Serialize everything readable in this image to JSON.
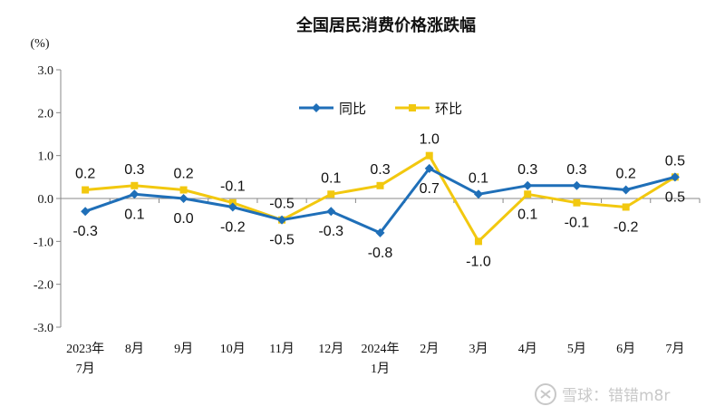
{
  "chart_data": {
    "type": "line",
    "title": "全国居民消费价格涨跌幅",
    "unit": "(%)",
    "ylim": [
      -3.0,
      3.0
    ],
    "yticks": [
      "3.0",
      "2.0",
      "1.0",
      "0.0",
      "-1.0",
      "-2.0",
      "-3.0"
    ],
    "categories": [
      [
        "2023年",
        "7月"
      ],
      [
        "8月"
      ],
      [
        "9月"
      ],
      [
        "10月"
      ],
      [
        "11月"
      ],
      [
        "12月"
      ],
      [
        "2024年",
        "1月"
      ],
      [
        "2月"
      ],
      [
        "3月"
      ],
      [
        "4月"
      ],
      [
        "5月"
      ],
      [
        "6月"
      ],
      [
        "7月"
      ]
    ],
    "legend_position": "top-center",
    "series": [
      {
        "name": "同比",
        "color": "#1f6fb8",
        "marker": "diamond",
        "values": [
          -0.3,
          0.1,
          0.0,
          -0.2,
          -0.5,
          -0.3,
          -0.8,
          0.7,
          0.1,
          0.3,
          0.3,
          0.2,
          0.5
        ],
        "labels": [
          "-0.3",
          "0.1",
          "0.0",
          "-0.2",
          "-0.5",
          "-0.3",
          "-0.8",
          "0.7",
          "0.1",
          "0.3",
          "0.3",
          "0.2",
          "0.5"
        ]
      },
      {
        "name": "环比",
        "color": "#f2c80f",
        "marker": "square",
        "values": [
          0.2,
          0.3,
          0.2,
          -0.1,
          -0.5,
          0.1,
          0.3,
          1.0,
          -1.0,
          0.1,
          -0.1,
          -0.2,
          0.5
        ],
        "labels": [
          "0.2",
          "0.3",
          "0.2",
          "-0.1",
          "-0.5",
          "0.1",
          "0.3",
          "1.0",
          "-1.0",
          "0.1",
          "-0.1",
          "-0.2",
          "0.5"
        ]
      }
    ]
  },
  "watermark": "雪球：错错m8r"
}
